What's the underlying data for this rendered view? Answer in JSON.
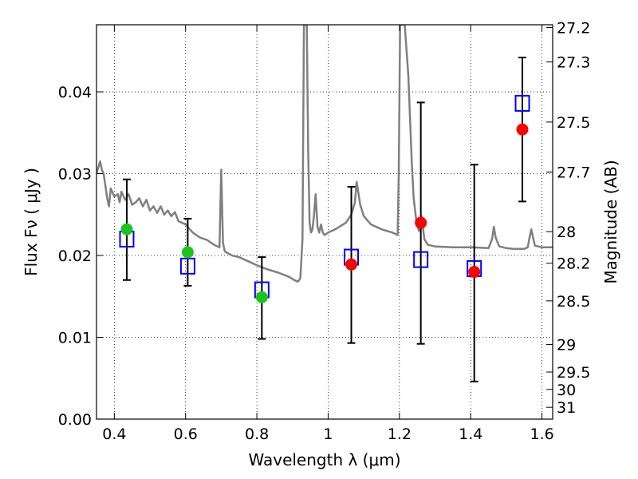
{
  "chart_data": {
    "type": "scatter",
    "title": "",
    "xlabel": "Wavelength  λ (μm)",
    "ylabel": "Flux  Fν  ( μJy )",
    "ylabel_right": "Magnitude (AB)",
    "xlim": [
      0.35,
      1.63
    ],
    "ylim": [
      0.0,
      0.0482
    ],
    "grid": true,
    "x_ticks": [
      0.4,
      0.6,
      0.8,
      1.0,
      1.2,
      1.4,
      1.6
    ],
    "x_tick_labels": [
      "0.4",
      "0.6",
      "0.8",
      "1",
      "1.2",
      "1.4",
      "1.6"
    ],
    "y_ticks": [
      0.0,
      0.01,
      0.02,
      0.03,
      0.04
    ],
    "y_tick_labels": [
      "0.00",
      "0.01",
      "0.02",
      "0.03",
      "0.04"
    ],
    "right_axis_ticks": [
      27.2,
      27.3,
      27.5,
      27.7,
      28,
      28.2,
      28.5,
      29,
      29.5,
      30,
      31
    ],
    "right_axis_tick_labels": [
      "27.2",
      "27.3",
      "27.5",
      "27.7",
      "28",
      "28.2",
      "28.5",
      "29",
      "29.5",
      "30",
      "31"
    ],
    "observed": [
      {
        "x": 0.435,
        "y": 0.0232,
        "yerr_low": 0.017,
        "yerr_high": 0.0293,
        "color": "#1ec41e"
      },
      {
        "x": 0.606,
        "y": 0.0204,
        "yerr_low": 0.0163,
        "yerr_high": 0.0245,
        "color": "#1ec41e"
      },
      {
        "x": 0.814,
        "y": 0.0149,
        "yerr_low": 0.0098,
        "yerr_high": 0.0198,
        "color": "#1ec41e"
      },
      {
        "x": 1.065,
        "y": 0.0189,
        "yerr_low": 0.0093,
        "yerr_high": 0.0284,
        "color": "#ff0000"
      },
      {
        "x": 1.26,
        "y": 0.024,
        "yerr_low": 0.0092,
        "yerr_high": 0.0387,
        "color": "#ff0000"
      },
      {
        "x": 1.41,
        "y": 0.018,
        "yerr_low": 0.0046,
        "yerr_high": 0.0311,
        "color": "#ff0000"
      },
      {
        "x": 1.545,
        "y": 0.0354,
        "yerr_low": 0.0266,
        "yerr_high": 0.0442,
        "color": "#ff0000"
      }
    ],
    "model_points": [
      {
        "x": 0.435,
        "y": 0.022
      },
      {
        "x": 0.606,
        "y": 0.0187
      },
      {
        "x": 0.814,
        "y": 0.0158
      },
      {
        "x": 1.065,
        "y": 0.0198
      },
      {
        "x": 1.26,
        "y": 0.0195
      },
      {
        "x": 1.41,
        "y": 0.0184
      },
      {
        "x": 1.545,
        "y": 0.0386
      }
    ],
    "sed_model": {
      "color": "#808080",
      "x": [
        0.35,
        0.36,
        0.365,
        0.37,
        0.375,
        0.38,
        0.385,
        0.39,
        0.4,
        0.41,
        0.415,
        0.42,
        0.43,
        0.44,
        0.45,
        0.46,
        0.47,
        0.48,
        0.49,
        0.5,
        0.51,
        0.52,
        0.53,
        0.54,
        0.55,
        0.56,
        0.57,
        0.58,
        0.6,
        0.62,
        0.64,
        0.66,
        0.68,
        0.695,
        0.7,
        0.705,
        0.71,
        0.73,
        0.75,
        0.78,
        0.8,
        0.83,
        0.86,
        0.89,
        0.905,
        0.915,
        0.922,
        0.928,
        0.932,
        0.936,
        0.94,
        0.944,
        0.948,
        0.952,
        0.956,
        0.96,
        0.965,
        0.97,
        0.975,
        0.98,
        0.985,
        0.99,
        1.0,
        1.02,
        1.05,
        1.065,
        1.075,
        1.08,
        1.09,
        1.1,
        1.12,
        1.15,
        1.18,
        1.195,
        1.198,
        1.202,
        1.206,
        1.21,
        1.215,
        1.225,
        1.235,
        1.24,
        1.248,
        1.255,
        1.262,
        1.27,
        1.28,
        1.3,
        1.35,
        1.4,
        1.45,
        1.46,
        1.465,
        1.47,
        1.48,
        1.5,
        1.52,
        1.54,
        1.55,
        1.56,
        1.565,
        1.57,
        1.575,
        1.58,
        1.6,
        1.62,
        1.63
      ],
      "y": [
        0.03,
        0.0315,
        0.0305,
        0.03,
        0.0285,
        0.027,
        0.026,
        0.0282,
        0.0272,
        0.0275,
        0.0265,
        0.0278,
        0.0268,
        0.0275,
        0.0262,
        0.0265,
        0.027,
        0.026,
        0.0268,
        0.0255,
        0.026,
        0.0252,
        0.026,
        0.025,
        0.0255,
        0.0248,
        0.0253,
        0.0242,
        0.0238,
        0.0228,
        0.0222,
        0.0219,
        0.0213,
        0.021,
        0.0305,
        0.0215,
        0.0205,
        0.02,
        0.0198,
        0.0192,
        0.0188,
        0.0183,
        0.0179,
        0.0174,
        0.017,
        0.0168,
        0.0172,
        0.022,
        0.0482,
        0.0482,
        0.0482,
        0.033,
        0.024,
        0.0228,
        0.0232,
        0.0248,
        0.0275,
        0.0235,
        0.0228,
        0.0238,
        0.0228,
        0.0225,
        0.0228,
        0.0232,
        0.024,
        0.025,
        0.0265,
        0.029,
        0.0262,
        0.0248,
        0.0238,
        0.0232,
        0.0228,
        0.0225,
        0.03,
        0.0482,
        0.0482,
        0.0482,
        0.0482,
        0.042,
        0.031,
        0.027,
        0.024,
        0.023,
        0.0248,
        0.022,
        0.0213,
        0.0211,
        0.021,
        0.021,
        0.0209,
        0.022,
        0.0235,
        0.0222,
        0.0211,
        0.0209,
        0.0208,
        0.0208,
        0.0208,
        0.021,
        0.0222,
        0.0232,
        0.0222,
        0.0212,
        0.021,
        0.021,
        0.021
      ]
    }
  }
}
